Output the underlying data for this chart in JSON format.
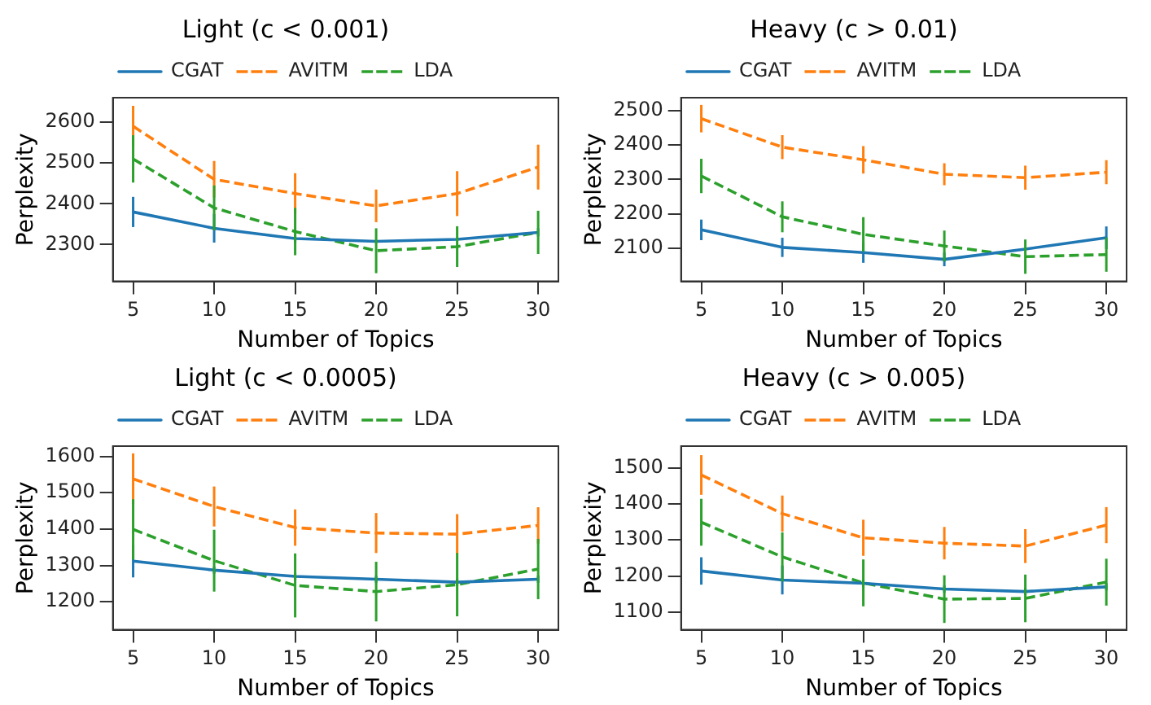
{
  "chart_data": [
    {
      "type": "line",
      "title": "Light (c < 0.001)",
      "xlabel": "Number of Topics",
      "ylabel": "Perplexity",
      "x": [
        5,
        10,
        15,
        20,
        25,
        30
      ],
      "xlim": [
        3.75,
        31.25
      ],
      "xticks": [
        5,
        10,
        15,
        20,
        25,
        30
      ],
      "ylim": [
        2210,
        2660
      ],
      "yticks": [
        2300,
        2400,
        2500,
        2600
      ],
      "grid": false,
      "legend": "top",
      "marker": "none",
      "series": [
        {
          "name": "CGAT",
          "color": "#1f77b4",
          "line_style": "solid",
          "values": [
            2380,
            2340,
            2315,
            2308,
            2313,
            2330
          ],
          "errors": [
            37,
            35,
            10,
            null,
            null,
            10
          ]
        },
        {
          "name": "AVITM",
          "color": "#ff7f0e",
          "line_style": "dashed",
          "values": [
            2590,
            2460,
            2425,
            2395,
            2425,
            2490
          ],
          "errors": [
            50,
            45,
            50,
            40,
            55,
            55
          ]
        },
        {
          "name": "LDA",
          "color": "#2ca02c",
          "line_style": "dashed",
          "values": [
            2510,
            2390,
            2332,
            2285,
            2295,
            2330
          ],
          "errors": [
            58,
            55,
            58,
            55,
            50,
            53
          ]
        }
      ]
    },
    {
      "type": "line",
      "title": "Heavy (c > 0.01)",
      "xlabel": "Number of Topics",
      "ylabel": "Perplexity",
      "x": [
        5,
        10,
        15,
        20,
        25,
        30
      ],
      "xlim": [
        3.75,
        31.25
      ],
      "xticks": [
        5,
        10,
        15,
        20,
        25,
        30
      ],
      "ylim": [
        2003,
        2538
      ],
      "yticks": [
        2100,
        2200,
        2300,
        2400,
        2500
      ],
      "grid": false,
      "legend": "top",
      "marker": "none",
      "series": [
        {
          "name": "CGAT",
          "color": "#1f77b4",
          "line_style": "solid",
          "values": [
            2153,
            2102,
            2087,
            2067,
            2097,
            2130
          ],
          "errors": [
            30,
            28,
            30,
            20,
            null,
            33
          ]
        },
        {
          "name": "AVITM",
          "color": "#ff7f0e",
          "line_style": "dashed",
          "values": [
            2477,
            2394,
            2357,
            2315,
            2305,
            2321
          ],
          "errors": [
            40,
            35,
            40,
            32,
            35,
            35
          ]
        },
        {
          "name": "LDA",
          "color": "#2ca02c",
          "line_style": "dashed",
          "values": [
            2310,
            2191,
            2140,
            2106,
            2075,
            2081
          ],
          "errors": [
            50,
            45,
            50,
            45,
            50,
            50
          ]
        }
      ]
    },
    {
      "type": "line",
      "title": "Light (c < 0.0005)",
      "xlabel": "Number of Topics",
      "ylabel": "Perplexity",
      "x": [
        5,
        10,
        15,
        20,
        25,
        30
      ],
      "xlim": [
        3.75,
        31.25
      ],
      "xticks": [
        5,
        10,
        15,
        20,
        25,
        30
      ],
      "ylim": [
        1123,
        1628
      ],
      "yticks": [
        1200,
        1300,
        1400,
        1500,
        1600
      ],
      "grid": false,
      "legend": "top",
      "marker": "none",
      "series": [
        {
          "name": "CGAT",
          "color": "#1f77b4",
          "line_style": "solid",
          "values": [
            1312,
            1287,
            1270,
            1262,
            1254,
            1262
          ],
          "errors": [
            45,
            10,
            10,
            10,
            10,
            10
          ]
        },
        {
          "name": "AVITM",
          "color": "#ff7f0e",
          "line_style": "dashed",
          "values": [
            1538,
            1462,
            1404,
            1389,
            1386,
            1410
          ],
          "errors": [
            70,
            55,
            50,
            55,
            55,
            50
          ]
        },
        {
          "name": "LDA",
          "color": "#2ca02c",
          "line_style": "dashed",
          "values": [
            1399,
            1313,
            1245,
            1228,
            1247,
            1290
          ],
          "errors": [
            83,
            85,
            88,
            82,
            87,
            83
          ]
        }
      ]
    },
    {
      "type": "line",
      "title": "Heavy (c > 0.005)",
      "xlabel": "Number of Topics",
      "ylabel": "Perplexity",
      "x": [
        5,
        10,
        15,
        20,
        25,
        30
      ],
      "xlim": [
        3.75,
        31.25
      ],
      "xticks": [
        5,
        10,
        15,
        20,
        25,
        30
      ],
      "ylim": [
        1051,
        1560
      ],
      "yticks": [
        1100,
        1200,
        1300,
        1400,
        1500
      ],
      "grid": false,
      "legend": "top",
      "marker": "none",
      "series": [
        {
          "name": "CGAT",
          "color": "#1f77b4",
          "line_style": "solid",
          "values": [
            1214,
            1189,
            1180,
            1164,
            1157,
            1170
          ],
          "errors": [
            38,
            40,
            10,
            10,
            10,
            10
          ]
        },
        {
          "name": "AVITM",
          "color": "#ff7f0e",
          "line_style": "dashed",
          "values": [
            1480,
            1373,
            1306,
            1291,
            1283,
            1341
          ],
          "errors": [
            55,
            50,
            50,
            45,
            47,
            50
          ]
        },
        {
          "name": "LDA",
          "color": "#2ca02c",
          "line_style": "dashed",
          "values": [
            1349,
            1253,
            1181,
            1136,
            1138,
            1183
          ],
          "errors": [
            65,
            68,
            65,
            66,
            66,
            65
          ]
        }
      ]
    }
  ]
}
